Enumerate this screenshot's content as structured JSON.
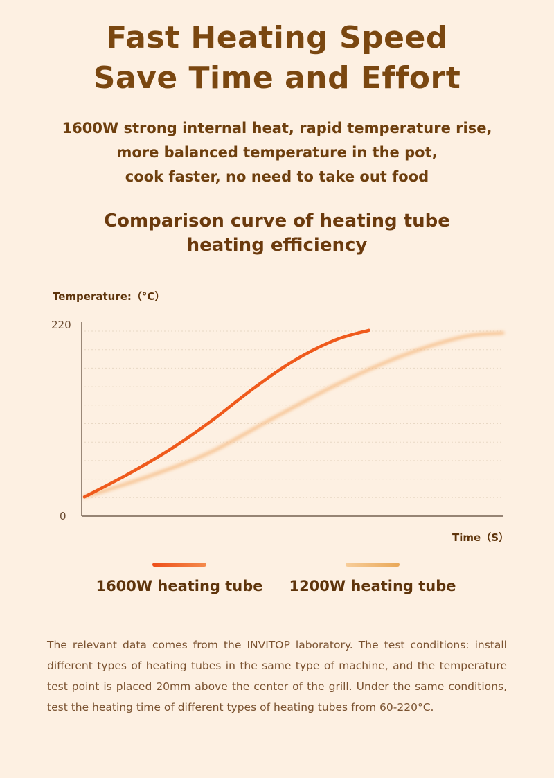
{
  "header": {
    "title_line1": "Fast Heating Speed",
    "title_line2": "Save Time and Effort"
  },
  "description": {
    "line1": "1600W strong internal heat, rapid temperature rise,",
    "line2": "more balanced temperature in the pot,",
    "line3": "cook faster, no need to take out food"
  },
  "chart_title": {
    "line1": "Comparison curve of heating tube",
    "line2": "heating efficiency"
  },
  "colors": {
    "background": "#fdf0e2",
    "series_1600w": "#ef5a1c",
    "series_1200w": "#f5b77d",
    "axis": "#5a4432",
    "text_brown": "#7a4710"
  },
  "chart_data": {
    "type": "line",
    "xlabel": "Time（S）",
    "ylabel": "Temperature:（°C）",
    "y_ticks": [
      "220",
      "0"
    ],
    "ylim": [
      0,
      220
    ],
    "xlim": [
      0,
      100
    ],
    "grid": true,
    "legend_placement": "bottom",
    "series": [
      {
        "name": "1600W heating tube",
        "x": [
          0,
          10,
          20,
          30,
          40,
          50,
          60,
          68
        ],
        "y": [
          22,
          47,
          75,
          108,
          145,
          178,
          202,
          213
        ]
      },
      {
        "name": "1200W heating tube",
        "x": [
          0,
          15,
          30,
          45,
          60,
          75,
          90,
          100
        ],
        "y": [
          22,
          45,
          73,
          112,
          150,
          182,
          205,
          210
        ]
      }
    ]
  },
  "footnote": "The relevant data comes from the INVITOP laboratory. The test conditions: install different types of heating tubes in the same type of machine, and the temperature test point is placed 20mm above the center of the grill. Under the same conditions, test the heating time of different types of heating tubes from 60-220°C."
}
